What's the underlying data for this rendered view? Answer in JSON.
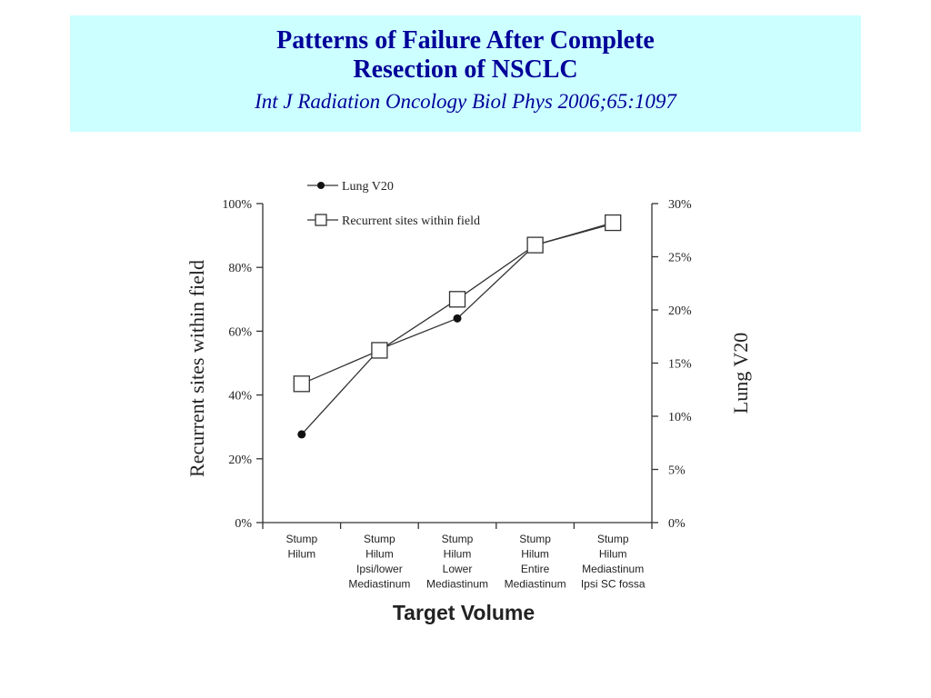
{
  "slide": {
    "title_line1": "Patterns of Failure After Complete",
    "title_line2": "Resection of NSCLC",
    "citation": "Int J Radiation Oncology Biol Phys 2006;65:1097"
  },
  "chart_data": {
    "type": "line",
    "xlabel": "Target Volume",
    "ylabel_left": "Recurrent sites within field",
    "ylabel_right": "Lung V20",
    "categories": [
      [
        "Stump",
        "Hilum"
      ],
      [
        "Stump",
        "Hilum",
        "Ipsi/lower",
        "Mediastinum"
      ],
      [
        "Stump",
        "Hilum",
        "Lower",
        "Mediastinum"
      ],
      [
        "Stump",
        "Hilum",
        "Entire",
        "Mediastinum"
      ],
      [
        "Stump",
        "Hilum",
        "Mediastinum",
        "Ipsi SC fossa"
      ]
    ],
    "yticks_left": [
      "0%",
      "20%",
      "40%",
      "60%",
      "80%",
      "100%"
    ],
    "yticks_right": [
      "0%",
      "5%",
      "10%",
      "15%",
      "20%",
      "25%",
      "30%"
    ],
    "ylim_left": [
      0,
      100
    ],
    "ylim_right": [
      0,
      30
    ],
    "legend_position": "top",
    "series": [
      {
        "name": "Lung V20",
        "axis": "right",
        "marker": "filled-circle",
        "values": [
          8.3,
          16.3,
          19.2,
          26.1,
          28.1
        ]
      },
      {
        "name": "Recurrent sites within field",
        "axis": "left",
        "marker": "open-square",
        "values": [
          43.5,
          54.0,
          70.0,
          87.0,
          94.0
        ]
      }
    ]
  }
}
